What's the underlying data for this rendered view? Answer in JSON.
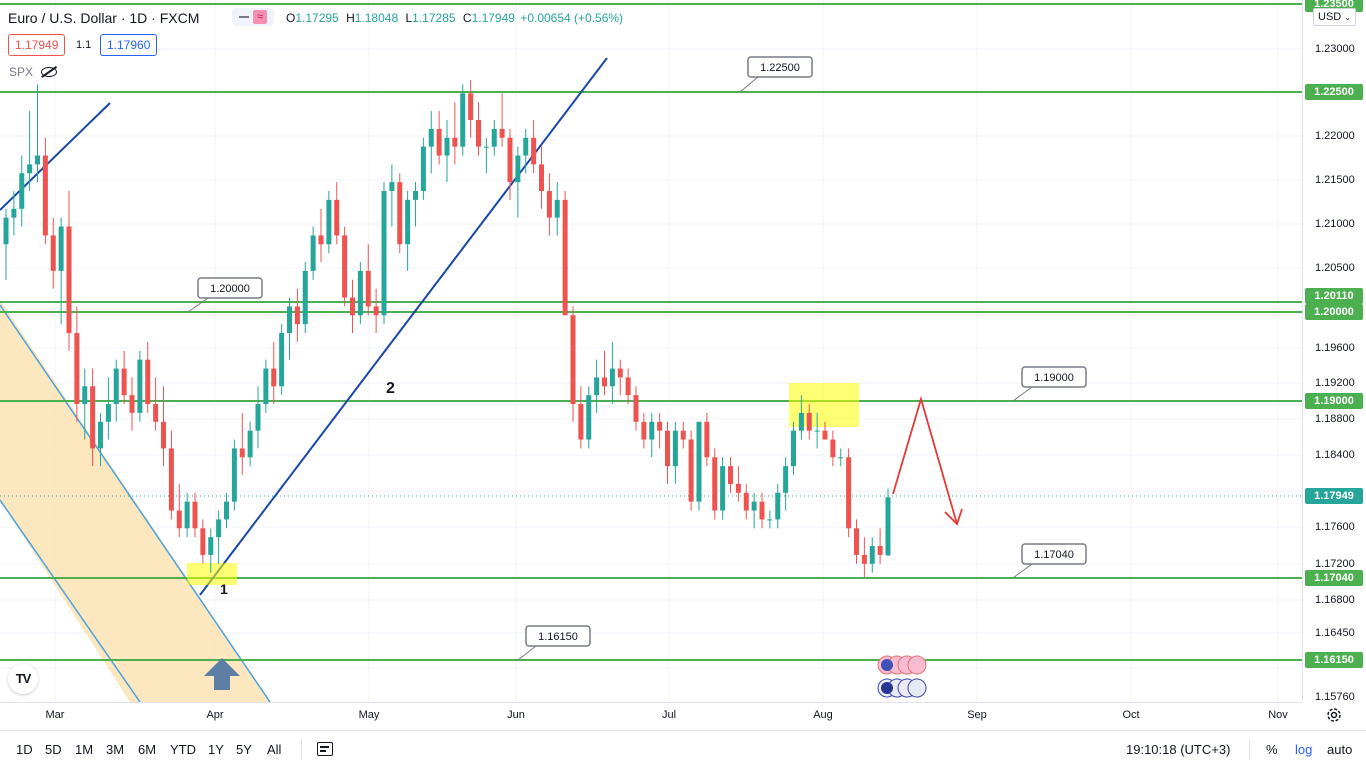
{
  "header": {
    "symbol": "Euro / U.S. Dollar · 1D · FXCM",
    "o_label": "O",
    "o": "1.17295",
    "h_label": "H",
    "h": "1.18048",
    "l_label": "L",
    "l": "1.17285",
    "c_label": "C",
    "c": "1.17949",
    "change": "+0.00654 (+0.56%)",
    "bid": "1.17949",
    "spread": "1.1",
    "ask": "1.17960",
    "indicator": "SPX"
  },
  "currency": "USD",
  "price_ticks": [
    "1.23000",
    "1.22500",
    "1.22000",
    "1.21500",
    "1.21000",
    "1.20500",
    "1.20110",
    "1.20000",
    "1.19600",
    "1.19200",
    "1.19000",
    "1.18800",
    "1.18400",
    "1.17949",
    "1.17600",
    "1.17200",
    "1.17040",
    "1.16800",
    "1.16450",
    "1.16150",
    "1.15760"
  ],
  "price_labels": [
    {
      "text": "1.23500",
      "color": "#4caf50"
    },
    {
      "text": "1.22500",
      "color": "#4caf50"
    },
    {
      "text": "1.20110",
      "color": "#4caf50"
    },
    {
      "text": "1.20000",
      "color": "#4caf50"
    },
    {
      "text": "1.19000",
      "color": "#4caf50"
    },
    {
      "text": "1.17949",
      "color": "#26a69a"
    },
    {
      "text": "1.17040",
      "color": "#4caf50"
    },
    {
      "text": "1.16150",
      "color": "#4caf50"
    }
  ],
  "time_ticks": [
    "Mar",
    "Apr",
    "May",
    "Jun",
    "Jul",
    "Aug",
    "Sep",
    "Oct",
    "Nov"
  ],
  "annotations": {
    "label_122500": "1.22500",
    "label_120000": "1.20000",
    "label_119000": "1.19000",
    "label_117040": "1.17040",
    "label_116150": "1.16150",
    "wave_1": "1",
    "wave_2": "2"
  },
  "ranges": [
    "1D",
    "5D",
    "1M",
    "3M",
    "6M",
    "YTD",
    "1Y",
    "5Y",
    "All"
  ],
  "clock": "19:10:18 (UTC+3)",
  "scale_buttons": [
    "%",
    "log",
    "auto"
  ],
  "logo": "TV",
  "colors": {
    "up": "#26a69a",
    "down": "#ef5350",
    "level_line": "#4caf50",
    "trend_line": "#1848a8",
    "channel_line": "#4aa3df",
    "channel_fill": "#fbe3b4",
    "arrow": "#e53935"
  },
  "chart_data": {
    "type": "candlestick",
    "title": "Euro / U.S. Dollar · 1D · FXCM",
    "ohlc_last": {
      "open": 1.17295,
      "high": 1.18048,
      "low": 1.17285,
      "close": 1.17949
    },
    "x_ticks": [
      "Mar",
      "Apr",
      "May",
      "Jun",
      "Jul",
      "Aug",
      "Sep",
      "Oct",
      "Nov"
    ],
    "y_ticks": [
      1.23,
      1.225,
      1.22,
      1.215,
      1.21,
      1.205,
      1.2,
      1.196,
      1.192,
      1.188,
      1.184,
      1.176,
      1.172,
      1.168,
      1.1645,
      1.1576
    ],
    "horizontal_levels": [
      1.235,
      1.225,
      1.2011,
      1.2,
      1.19,
      1.1704,
      1.1615
    ],
    "last_price": 1.17949,
    "candles": [
      [
        1.208,
        1.212,
        1.204,
        1.211
      ],
      [
        1.211,
        1.214,
        1.209,
        1.212
      ],
      [
        1.212,
        1.218,
        1.21,
        1.216
      ],
      [
        1.216,
        1.223,
        1.214,
        1.217
      ],
      [
        1.217,
        1.226,
        1.215,
        1.218
      ],
      [
        1.218,
        1.22,
        1.208,
        1.209
      ],
      [
        1.209,
        1.211,
        1.203,
        1.205
      ],
      [
        1.205,
        1.211,
        1.199,
        1.21
      ],
      [
        1.21,
        1.214,
        1.196,
        1.198
      ],
      [
        1.198,
        1.201,
        1.188,
        1.19
      ],
      [
        1.19,
        1.194,
        1.186,
        1.192
      ],
      [
        1.192,
        1.194,
        1.183,
        1.185
      ],
      [
        1.185,
        1.189,
        1.183,
        1.188
      ],
      [
        1.188,
        1.193,
        1.186,
        1.19
      ],
      [
        1.19,
        1.195,
        1.188,
        1.194
      ],
      [
        1.194,
        1.196,
        1.19,
        1.191
      ],
      [
        1.191,
        1.193,
        1.187,
        1.189
      ],
      [
        1.189,
        1.196,
        1.188,
        1.195
      ],
      [
        1.195,
        1.197,
        1.189,
        1.19
      ],
      [
        1.19,
        1.193,
        1.187,
        1.188
      ],
      [
        1.188,
        1.192,
        1.183,
        1.185
      ],
      [
        1.185,
        1.187,
        1.177,
        1.178
      ],
      [
        1.178,
        1.181,
        1.175,
        1.176
      ],
      [
        1.176,
        1.18,
        1.175,
        1.179
      ],
      [
        1.179,
        1.18,
        1.175,
        1.176
      ],
      [
        1.176,
        1.177,
        1.172,
        1.173
      ],
      [
        1.173,
        1.176,
        1.171,
        1.175
      ],
      [
        1.175,
        1.178,
        1.172,
        1.177
      ],
      [
        1.177,
        1.18,
        1.176,
        1.179
      ],
      [
        1.179,
        1.186,
        1.178,
        1.185
      ],
      [
        1.185,
        1.189,
        1.182,
        1.184
      ],
      [
        1.184,
        1.188,
        1.183,
        1.187
      ],
      [
        1.187,
        1.192,
        1.185,
        1.19
      ],
      [
        1.19,
        1.195,
        1.189,
        1.194
      ],
      [
        1.194,
        1.197,
        1.19,
        1.192
      ],
      [
        1.192,
        1.199,
        1.191,
        1.198
      ],
      [
        1.198,
        1.202,
        1.195,
        1.201
      ],
      [
        1.201,
        1.203,
        1.197,
        1.199
      ],
      [
        1.199,
        1.206,
        1.198,
        1.205
      ],
      [
        1.205,
        1.21,
        1.204,
        1.209
      ],
      [
        1.209,
        1.212,
        1.206,
        1.208
      ],
      [
        1.208,
        1.214,
        1.207,
        1.213
      ],
      [
        1.213,
        1.215,
        1.208,
        1.209
      ],
      [
        1.209,
        1.21,
        1.201,
        1.202
      ],
      [
        1.202,
        1.204,
        1.198,
        1.2
      ],
      [
        1.2,
        1.206,
        1.199,
        1.205
      ],
      [
        1.205,
        1.208,
        1.2,
        1.201
      ],
      [
        1.201,
        1.203,
        1.198,
        1.2
      ],
      [
        1.2,
        1.215,
        1.199,
        1.214
      ],
      [
        1.214,
        1.217,
        1.21,
        1.215
      ],
      [
        1.215,
        1.216,
        1.207,
        1.208
      ],
      [
        1.208,
        1.214,
        1.205,
        1.213
      ],
      [
        1.213,
        1.215,
        1.21,
        1.214
      ],
      [
        1.214,
        1.22,
        1.213,
        1.219
      ],
      [
        1.219,
        1.223,
        1.216,
        1.221
      ],
      [
        1.221,
        1.223,
        1.217,
        1.218
      ],
      [
        1.218,
        1.222,
        1.215,
        1.22
      ],
      [
        1.22,
        1.224,
        1.217,
        1.219
      ],
      [
        1.219,
        1.226,
        1.218,
        1.225
      ],
      [
        1.225,
        1.2265,
        1.22,
        1.222
      ],
      [
        1.222,
        1.224,
        1.218,
        1.219
      ],
      [
        1.219,
        1.22,
        1.216,
        1.219
      ],
      [
        1.219,
        1.222,
        1.218,
        1.221
      ],
      [
        1.221,
        1.225,
        1.219,
        1.22
      ],
      [
        1.22,
        1.221,
        1.213,
        1.215
      ],
      [
        1.215,
        1.219,
        1.211,
        1.218
      ],
      [
        1.218,
        1.221,
        1.216,
        1.22
      ],
      [
        1.22,
        1.222,
        1.216,
        1.217
      ],
      [
        1.217,
        1.219,
        1.212,
        1.214
      ],
      [
        1.214,
        1.216,
        1.209,
        1.211
      ],
      [
        1.211,
        1.215,
        1.209,
        1.213
      ],
      [
        1.213,
        1.214,
        1.2,
        1.2
      ],
      [
        1.2,
        1.201,
        1.188,
        1.19
      ],
      [
        1.19,
        1.192,
        1.185,
        1.186
      ],
      [
        1.186,
        1.192,
        1.185,
        1.191
      ],
      [
        1.191,
        1.195,
        1.189,
        1.193
      ],
      [
        1.193,
        1.196,
        1.191,
        1.192
      ],
      [
        1.192,
        1.197,
        1.19,
        1.194
      ],
      [
        1.194,
        1.195,
        1.191,
        1.193
      ],
      [
        1.193,
        1.194,
        1.19,
        1.191
      ],
      [
        1.191,
        1.192,
        1.187,
        1.188
      ],
      [
        1.188,
        1.189,
        1.185,
        1.186
      ],
      [
        1.186,
        1.189,
        1.184,
        1.188
      ],
      [
        1.188,
        1.189,
        1.185,
        1.187
      ],
      [
        1.187,
        1.188,
        1.181,
        1.183
      ],
      [
        1.183,
        1.188,
        1.181,
        1.187
      ],
      [
        1.187,
        1.188,
        1.185,
        1.186
      ],
      [
        1.186,
        1.187,
        1.178,
        1.179
      ],
      [
        1.179,
        1.188,
        1.178,
        1.188
      ],
      [
        1.188,
        1.189,
        1.183,
        1.184
      ],
      [
        1.184,
        1.185,
        1.177,
        1.178
      ],
      [
        1.178,
        1.184,
        1.177,
        1.183
      ],
      [
        1.183,
        1.184,
        1.18,
        1.181
      ],
      [
        1.181,
        1.183,
        1.179,
        1.18
      ],
      [
        1.18,
        1.181,
        1.177,
        1.178
      ],
      [
        1.178,
        1.18,
        1.176,
        1.179
      ],
      [
        1.179,
        1.18,
        1.176,
        1.177
      ],
      [
        1.177,
        1.178,
        1.176,
        1.177
      ],
      [
        1.177,
        1.181,
        1.176,
        1.18
      ],
      [
        1.18,
        1.184,
        1.178,
        1.183
      ],
      [
        1.183,
        1.188,
        1.182,
        1.187
      ],
      [
        1.187,
        1.191,
        1.186,
        1.189
      ],
      [
        1.189,
        1.19,
        1.186,
        1.187
      ],
      [
        1.187,
        1.189,
        1.185,
        1.187
      ],
      [
        1.187,
        1.188,
        1.186,
        1.186
      ],
      [
        1.186,
        1.187,
        1.183,
        1.184
      ],
      [
        1.184,
        1.185,
        1.183,
        1.184
      ],
      [
        1.184,
        1.185,
        1.175,
        1.176
      ],
      [
        1.176,
        1.177,
        1.172,
        1.173
      ],
      [
        1.173,
        1.175,
        1.1705,
        1.172
      ],
      [
        1.172,
        1.175,
        1.171,
        1.174
      ],
      [
        1.174,
        1.176,
        1.172,
        1.173
      ],
      [
        1.17295,
        1.18048,
        1.17285,
        1.17949
      ]
    ]
  }
}
